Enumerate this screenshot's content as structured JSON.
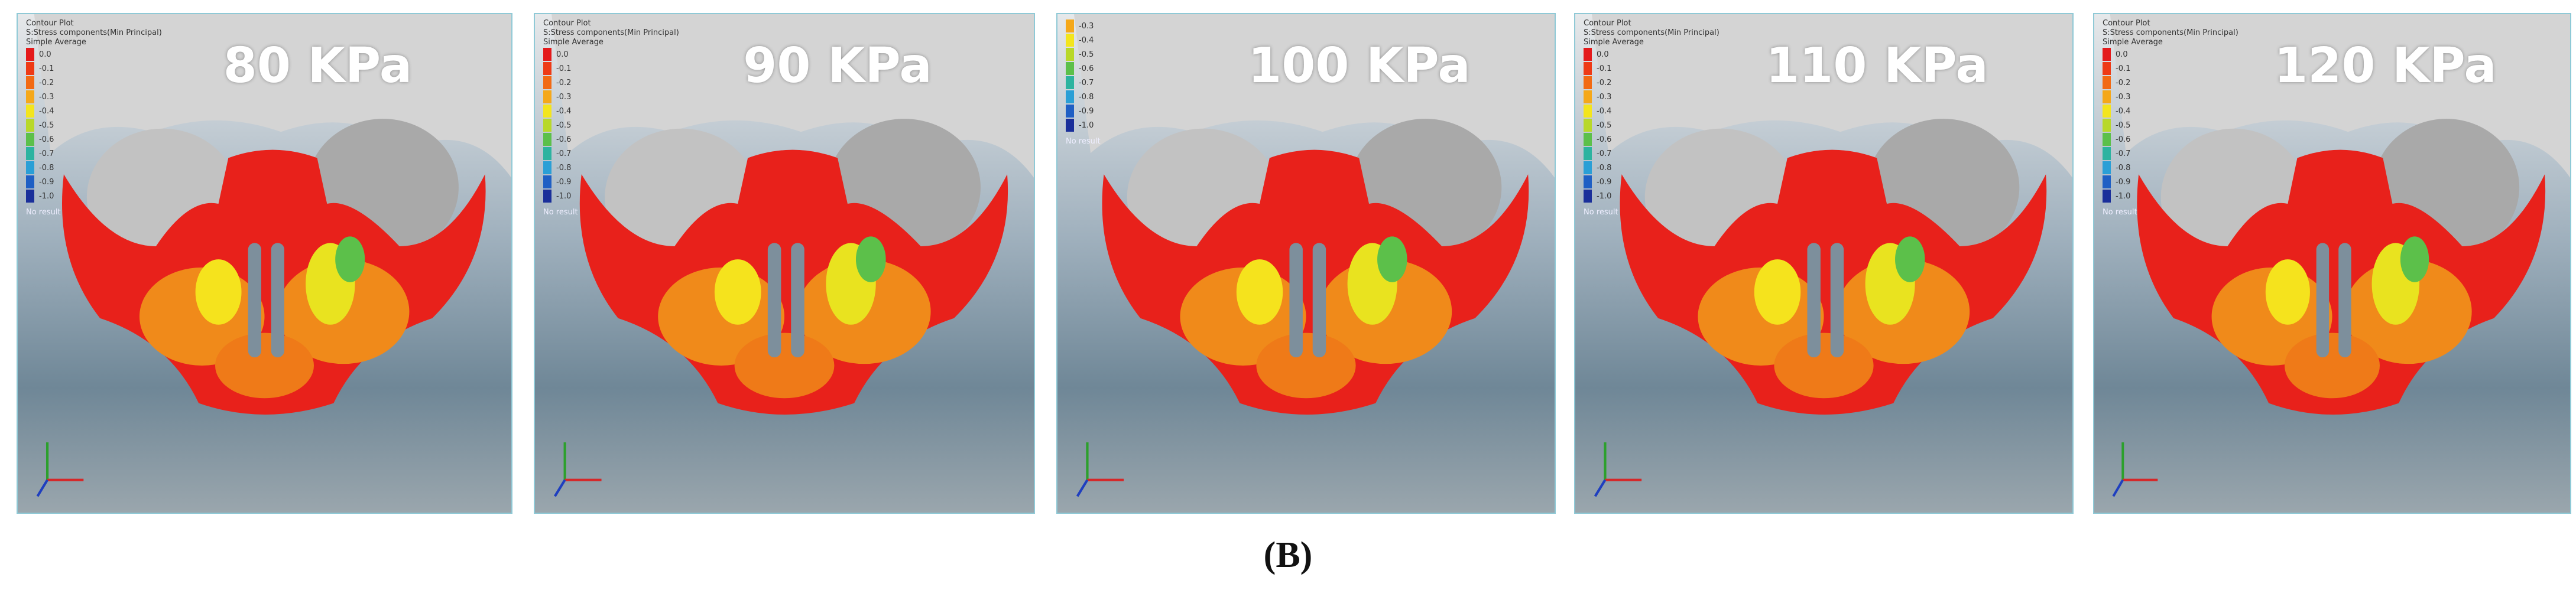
{
  "caption": "(B)",
  "panels": [
    {
      "title": "80 KPa",
      "legend": {
        "header": [
          "Contour Plot",
          "S:Stress components(Min Principal)",
          "Simple Average"
        ],
        "values": [
          "0.0",
          "-0.1",
          "-0.2",
          "-0.3",
          "-0.4",
          "-0.5",
          "-0.6",
          "-0.7",
          "-0.8",
          "-0.9",
          "-1.0"
        ],
        "colors": [
          "#e41a1c",
          "#ee3a16",
          "#f26a14",
          "#f5a81a",
          "#f3e51d",
          "#b8d82a",
          "#5cc04a",
          "#2cb3a0",
          "#2a9fd6",
          "#1f5fc4",
          "#1a2f9a"
        ],
        "no_result": "No result"
      }
    },
    {
      "title": "90 KPa",
      "legend": {
        "header": [
          "Contour Plot",
          "S:Stress components(Min Principal)",
          "Simple Average"
        ],
        "values": [
          "0.0",
          "-0.1",
          "-0.2",
          "-0.3",
          "-0.4",
          "-0.5",
          "-0.6",
          "-0.7",
          "-0.8",
          "-0.9",
          "-1.0"
        ],
        "colors": [
          "#e41a1c",
          "#ee3a16",
          "#f26a14",
          "#f5a81a",
          "#f3e51d",
          "#b8d82a",
          "#5cc04a",
          "#2cb3a0",
          "#2a9fd6",
          "#1f5fc4",
          "#1a2f9a"
        ],
        "no_result": "No result"
      }
    },
    {
      "title": "100 KPa",
      "legend": {
        "header": [],
        "values": [
          "-0.3",
          "-0.4",
          "-0.5",
          "-0.6",
          "-0.7",
          "-0.8",
          "-0.9",
          "-1.0"
        ],
        "colors": [
          "#f5a81a",
          "#f3e51d",
          "#b8d82a",
          "#5cc04a",
          "#2cb3a0",
          "#2a9fd6",
          "#1f5fc4",
          "#1a2f9a"
        ],
        "no_result": "No result"
      }
    },
    {
      "title": "110 KPa",
      "legend": {
        "header": [
          "Contour Plot",
          "S:Stress components(Min Principal)",
          "Simple Average"
        ],
        "values": [
          "0.0",
          "-0.1",
          "-0.2",
          "-0.3",
          "-0.4",
          "-0.5",
          "-0.6",
          "-0.7",
          "-0.8",
          "-0.9",
          "-1.0"
        ],
        "colors": [
          "#e41a1c",
          "#ee3a16",
          "#f26a14",
          "#f5a81a",
          "#f3e51d",
          "#b8d82a",
          "#5cc04a",
          "#2cb3a0",
          "#2a9fd6",
          "#1f5fc4",
          "#1a2f9a"
        ],
        "no_result": "No result"
      }
    },
    {
      "title": "120 KPa",
      "legend": {
        "header": [
          "Contour Plot",
          "S:Stress components(Min Principal)",
          "Simple Average"
        ],
        "values": [
          "0.0",
          "-0.1",
          "-0.2",
          "-0.3",
          "-0.4",
          "-0.5",
          "-0.6",
          "-0.7",
          "-0.8",
          "-0.9",
          "-1.0"
        ],
        "colors": [
          "#e41a1c",
          "#ee3a16",
          "#f26a14",
          "#f5a81a",
          "#f3e51d",
          "#b8d82a",
          "#5cc04a",
          "#2cb3a0",
          "#2a9fd6",
          "#1f5fc4",
          "#1a2f9a"
        ],
        "no_result": "No result"
      }
    }
  ]
}
